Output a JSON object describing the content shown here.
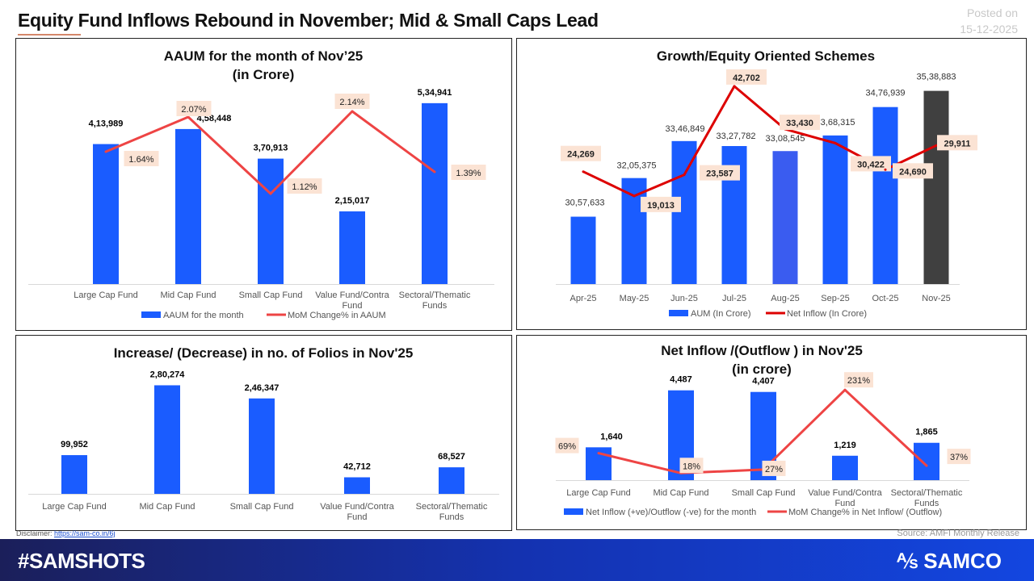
{
  "header": {
    "title": "Equity Fund Inflows Rebound in November; Mid & Small Caps Lead",
    "posted_label": "Posted on",
    "posted_date": "15-12-2025"
  },
  "footer": {
    "disclaimer_label": "Disclaimer:",
    "disclaimer_link": "https://sam-co.in/6j",
    "source": "Source: AMFI Monthly Release",
    "hashtag": "#SAMSHOTS",
    "logo": "SAMCO"
  },
  "colors": {
    "bar": "#1a5cff",
    "bar_aug": "#3a5cf0",
    "bar_highlight": "#404040",
    "line_light": "#ee4444",
    "line_dark": "#dd0000",
    "label_box": "#fbe3d4"
  },
  "chart_data": [
    {
      "type": "bar+line",
      "title": "AAUM for the month of Nov’25",
      "subtitle": "(in Crore)",
      "categories": [
        "Large Cap Fund",
        "Mid Cap Fund",
        "Small Cap Fund",
        "Value Fund/Contra Fund",
        "Sectoral/Thematic Funds"
      ],
      "series": [
        {
          "name": "AAUM for the month",
          "type": "bar",
          "values": [
            413989,
            458448,
            370913,
            215017,
            534941
          ],
          "labels": [
            "4,13,989",
            "4,58,448",
            "3,70,913",
            "2,15,017",
            "5,34,941"
          ]
        },
        {
          "name": "MoM Change% in AAUM",
          "type": "line",
          "values": [
            1.64,
            2.07,
            1.12,
            2.14,
            1.39
          ],
          "labels": [
            "1.64%",
            "2.07%",
            "1.12%",
            "2.14%",
            "1.39%"
          ]
        }
      ],
      "legend": "bottom"
    },
    {
      "type": "bar+line",
      "title": "Growth/Equity Oriented Schemes",
      "categories": [
        "Apr-25",
        "May-25",
        "Jun-25",
        "Jul-25",
        "Aug-25",
        "Sep-25",
        "Oct-25",
        "Nov-25"
      ],
      "series": [
        {
          "name": "AUM (In Crore)",
          "type": "bar",
          "values": [
            3057633,
            3205375,
            3346849,
            3327782,
            3308545,
            3368315,
            3476939,
            3538883
          ],
          "labels": [
            "30,57,633",
            "32,05,375",
            "33,46,849",
            "33,27,782",
            "33,08,545",
            "33,68,315",
            "34,76,939",
            "35,38,883"
          ]
        },
        {
          "name": "Net Inflow (In Crore)",
          "type": "line",
          "values": [
            24269,
            19013,
            23587,
            42702,
            33430,
            30422,
            24690,
            29911
          ],
          "labels": [
            "24,269",
            "19,013",
            "23,587",
            "42,702",
            "33,430",
            "30,422",
            "24,690",
            "29,911"
          ]
        }
      ],
      "bar_axis_min": 2800000,
      "legend": "bottom"
    },
    {
      "type": "bar",
      "title": "Increase/ (Decrease) in no. of Folios in Nov'25",
      "categories": [
        "Large Cap Fund",
        "Mid Cap Fund",
        "Small Cap Fund",
        "Value Fund/Contra Fund",
        "Sectoral/Thematic Funds"
      ],
      "series": [
        {
          "type": "bar",
          "values": [
            99952,
            280274,
            246347,
            42712,
            68527
          ],
          "labels": [
            "99,952",
            "2,80,274",
            "2,46,347",
            "42,712",
            "68,527"
          ]
        }
      ]
    },
    {
      "type": "bar+line",
      "title": "Net Inflow /(Outflow ) in Nov'25",
      "subtitle": "(in crore)",
      "categories": [
        "Large Cap Fund",
        "Mid Cap Fund",
        "Small Cap Fund",
        "Value Fund/Contra Fund",
        "Sectoral/Thematic Funds"
      ],
      "series": [
        {
          "name": "Net Inflow (+ve)/Outflow (-ve) for the month",
          "type": "bar",
          "values": [
            1640,
            4487,
            4407,
            1219,
            1865
          ],
          "labels": [
            "1,640",
            "4,487",
            "4,407",
            "1,219",
            "1,865"
          ]
        },
        {
          "name": "MoM Change% in Net Inflow/ (Outflow)",
          "type": "line",
          "values": [
            69,
            18,
            27,
            231,
            37
          ],
          "labels": [
            "69%",
            "18%",
            "27%",
            "231%",
            "37%"
          ]
        }
      ],
      "legend": "bottom"
    }
  ]
}
